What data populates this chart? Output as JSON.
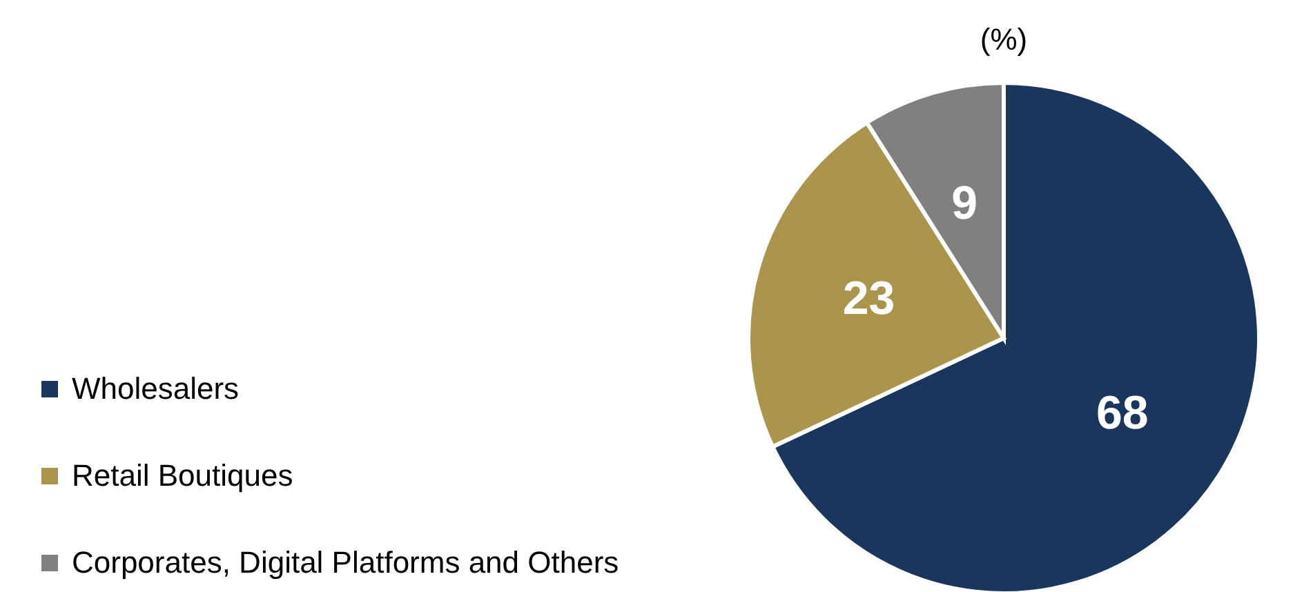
{
  "chart_data": {
    "type": "pie",
    "title": "(%)",
    "categories": [
      "Wholesalers",
      "Retail Boutiques",
      "Corporates, Digital Platforms and Others"
    ],
    "values": [
      68,
      23,
      9
    ],
    "colors": [
      "#1b365d",
      "#ab954c",
      "#808080"
    ],
    "data_labels": true,
    "legend": "bottom left"
  }
}
